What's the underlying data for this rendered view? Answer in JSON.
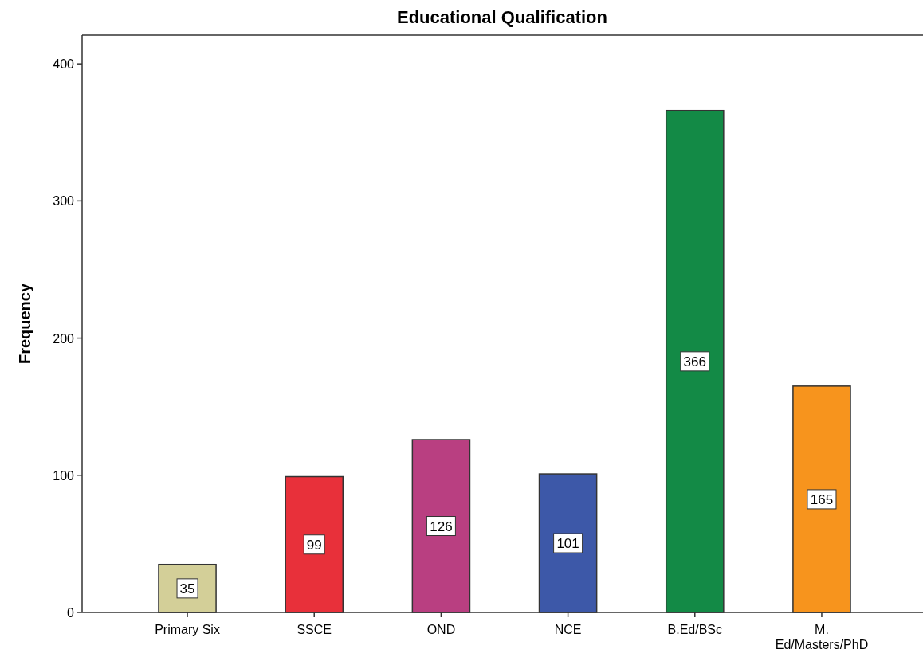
{
  "chart_data": {
    "type": "bar",
    "title": "Educational Qualification",
    "ylabel": "Frequency",
    "categories": [
      "Primary Six",
      "SSCE",
      "OND",
      "NCE",
      "B.Ed/BSc",
      "M. Ed/Masters/PhD"
    ],
    "values": [
      35,
      99,
      126,
      101,
      366,
      165
    ],
    "colors": [
      "#d3cf98",
      "#e8303a",
      "#b93f81",
      "#3d58a8",
      "#138a46",
      "#f7941d"
    ],
    "ylim": [
      0,
      421
    ],
    "yticks": [
      0,
      100,
      200,
      300,
      400
    ],
    "data_labels": true,
    "grid": false
  }
}
